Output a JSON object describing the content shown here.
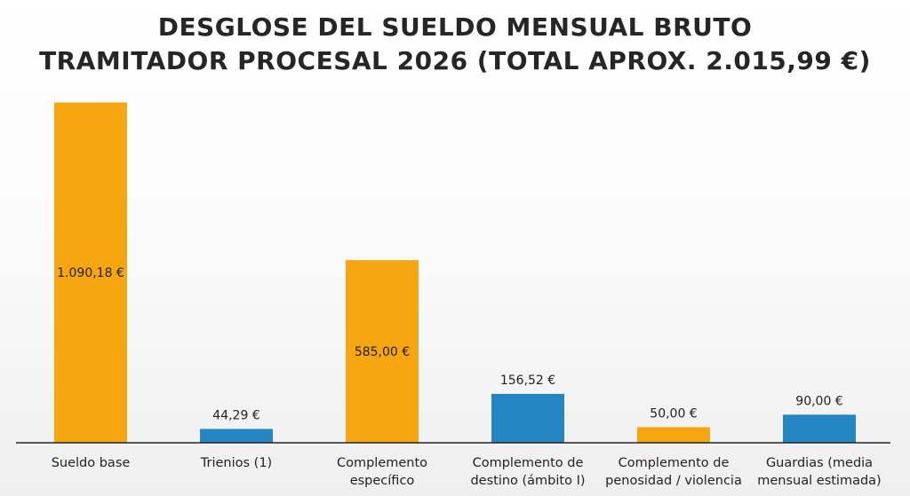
{
  "chart_data": {
    "type": "bar",
    "title_lines": [
      "DESGLOSE DEL SUELDO MENSUAL BRUTO",
      "TRAMITADOR PROCESAL 2026 (TOTAL APROX. 2.015,99 €)"
    ],
    "categories": [
      [
        "Sueldo base"
      ],
      [
        "Trienios (1)"
      ],
      [
        "Complemento",
        "específico"
      ],
      [
        "Complemento de",
        "destino (ámbito I)"
      ],
      [
        "Complemento de",
        "penosidad / violencia"
      ],
      [
        "Guardias (media",
        "mensual estimada)"
      ]
    ],
    "values": [
      1090.18,
      44.29,
      585.0,
      156.52,
      50.0,
      90.0
    ],
    "value_labels": [
      "1.090,18 €",
      "44,29 €",
      "585,00 €",
      "156,52 €",
      "50,00 €",
      "90,00 €"
    ],
    "label_position": [
      "inside",
      "above",
      "inside",
      "above",
      "above",
      "above"
    ],
    "bar_colors": [
      "#F5A611",
      "#2385C2",
      "#F5A611",
      "#2385C2",
      "#F5A611",
      "#2385C2"
    ],
    "axis_color": "#222222",
    "ylim": [
      0,
      1100
    ],
    "grid": false,
    "legend": "none"
  }
}
